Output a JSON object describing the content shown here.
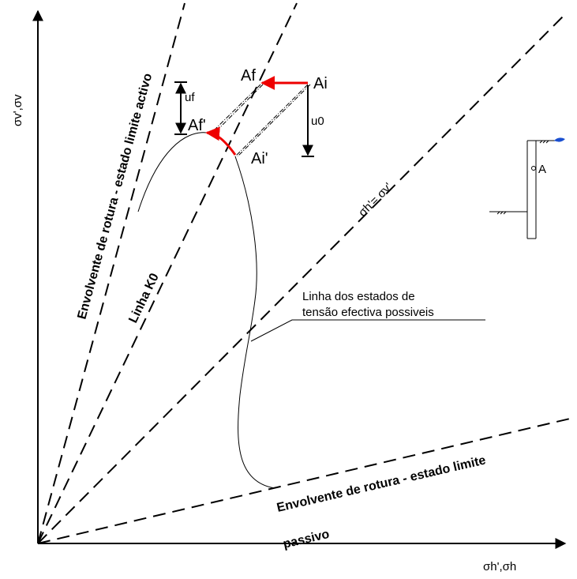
{
  "axes": {
    "y_label": "σv',σv",
    "x_label": "σh',σh"
  },
  "lines": {
    "active_envelope": "Envolvente de rotura - estado limite activo",
    "k0": "Linha K0",
    "isotropic": "σh'= σv'",
    "passive_envelope": [
      "Envolvente de rotura - estado limite",
      "passivo"
    ],
    "stress_path": [
      "Linha dos estados de",
      "tensão efectiva possiveis"
    ]
  },
  "points": {
    "af": "Af",
    "ai": "Ai",
    "af_eff": "Af'",
    "ai_eff": "Ai'",
    "uf": "uf",
    "u0": "u0",
    "a": "A"
  }
}
